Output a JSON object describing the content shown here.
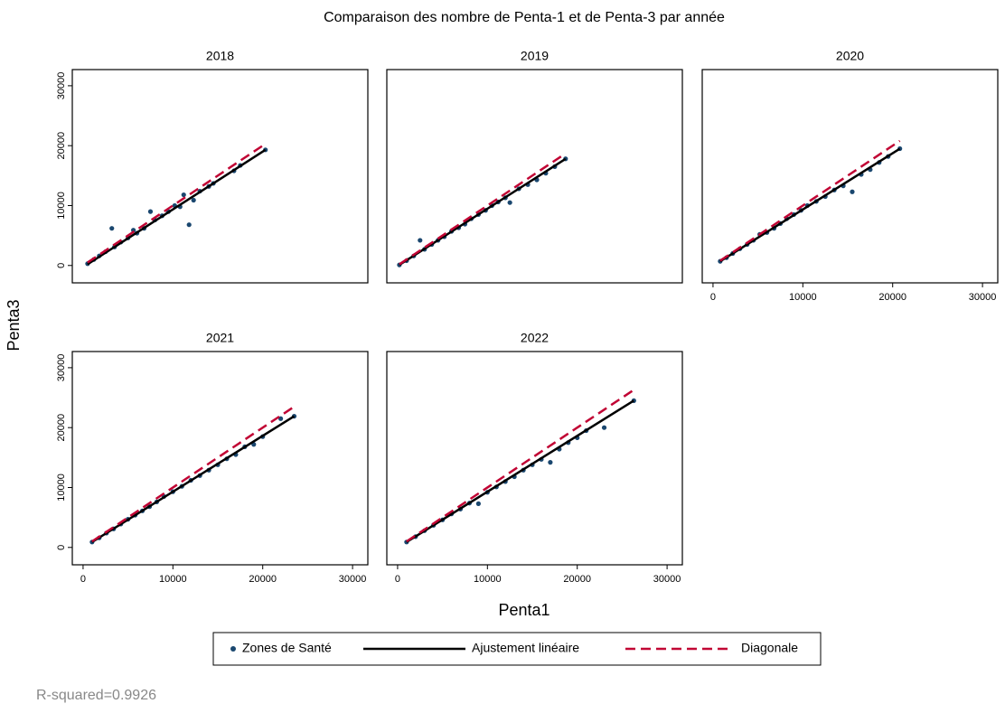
{
  "figure": {
    "title": "Comparaison des nombre de Penta-1 et de Penta-3 par année",
    "x_label": "Penta1",
    "y_label": "Penta3",
    "note": "R-squared=0.9926"
  },
  "chart_data": [
    {
      "type": "scatter",
      "title": "2018",
      "xlim": [
        -1200,
        31700
      ],
      "ylim": [
        -2900,
        32700
      ],
      "xticks": [
        0,
        10000,
        20000,
        30000
      ],
      "yticks": [
        0,
        10000,
        20000,
        30000
      ],
      "series": [
        {
          "name": "Zones de Santé",
          "color": "#1a476f",
          "kind": "points",
          "x": [
            500,
            1200,
            1800,
            2500,
            3200,
            3500,
            4200,
            5000,
            5600,
            6000,
            6800,
            7500,
            8000,
            8800,
            9500,
            10200,
            10800,
            11200,
            11800,
            12300,
            13000,
            14000,
            14500,
            16800,
            17500,
            20300
          ],
          "values": [
            300,
            1000,
            1600,
            2300,
            6200,
            3100,
            3900,
            4600,
            5900,
            5400,
            6200,
            9000,
            7600,
            8300,
            9000,
            10000,
            9800,
            11800,
            6800,
            10900,
            12400,
            13200,
            13700,
            15800,
            16700,
            19300
          ]
        },
        {
          "name": "Ajustement linéaire",
          "color": "#000000",
          "kind": "line",
          "x": [
            500,
            20300
          ],
          "values": [
            200,
            19300
          ]
        },
        {
          "name": "Diagonale",
          "color": "#c10534",
          "kind": "dashed",
          "x": [
            500,
            20300
          ],
          "values": [
            500,
            20300
          ]
        }
      ]
    },
    {
      "type": "scatter",
      "title": "2019",
      "xlim": [
        -1200,
        31700
      ],
      "ylim": [
        -2900,
        32700
      ],
      "xticks": [
        0,
        10000,
        20000,
        30000
      ],
      "yticks": [
        0,
        10000,
        20000,
        30000
      ],
      "series": [
        {
          "name": "Zones de Santé",
          "color": "#1a476f",
          "kind": "points",
          "x": [
            200,
            1000,
            1800,
            2500,
            3000,
            3800,
            4500,
            5200,
            6000,
            6800,
            7500,
            8200,
            9000,
            9800,
            10500,
            11200,
            12000,
            12500,
            13500,
            14500,
            15500,
            16500,
            17500,
            18700
          ],
          "values": [
            100,
            800,
            1600,
            4200,
            2700,
            3500,
            4200,
            4800,
            5700,
            6300,
            6900,
            7800,
            8500,
            9200,
            10000,
            10600,
            11300,
            10500,
            12800,
            13500,
            14300,
            15400,
            16500,
            17800
          ]
        },
        {
          "name": "Ajustement linéaire",
          "color": "#000000",
          "kind": "line",
          "x": [
            200,
            18700
          ],
          "values": [
            100,
            17800
          ]
        },
        {
          "name": "Diagonale",
          "color": "#c10534",
          "kind": "dashed",
          "x": [
            200,
            18700
          ],
          "values": [
            200,
            18700
          ]
        }
      ]
    },
    {
      "type": "scatter",
      "title": "2020",
      "xlim": [
        -1200,
        31700
      ],
      "ylim": [
        -2900,
        32700
      ],
      "xticks": [
        0,
        10000,
        20000,
        30000
      ],
      "yticks": [
        0,
        10000,
        20000,
        30000
      ],
      "series": [
        {
          "name": "Zones de Santé",
          "color": "#1a476f",
          "kind": "points",
          "x": [
            800,
            1500,
            2200,
            3000,
            3800,
            4500,
            5200,
            6000,
            6800,
            7500,
            8200,
            9000,
            9800,
            10500,
            11500,
            12500,
            13500,
            14500,
            15500,
            16500,
            17500,
            18500,
            19500,
            20800
          ],
          "values": [
            700,
            1300,
            2000,
            2800,
            3500,
            4200,
            5200,
            5500,
            6200,
            7000,
            7800,
            8500,
            9200,
            10000,
            10700,
            11500,
            12600,
            13300,
            12300,
            15200,
            16000,
            17200,
            18200,
            19500
          ]
        },
        {
          "name": "Ajustement linéaire",
          "color": "#000000",
          "kind": "line",
          "x": [
            800,
            20800
          ],
          "values": [
            700,
            19500
          ]
        },
        {
          "name": "Diagonale",
          "color": "#c10534",
          "kind": "dashed",
          "x": [
            800,
            20800
          ],
          "values": [
            800,
            20800
          ]
        }
      ]
    },
    {
      "type": "scatter",
      "title": "2021",
      "xlim": [
        -1200,
        31700
      ],
      "ylim": [
        -2900,
        32700
      ],
      "xticks": [
        0,
        10000,
        20000,
        30000
      ],
      "yticks": [
        0,
        10000,
        20000,
        30000
      ],
      "series": [
        {
          "name": "Zones de Santé",
          "color": "#1a476f",
          "kind": "points",
          "x": [
            1000,
            1800,
            2600,
            3400,
            4200,
            5000,
            5800,
            6600,
            7400,
            8200,
            9000,
            10000,
            11000,
            12000,
            13000,
            14000,
            15000,
            16000,
            17000,
            18000,
            19000,
            20000,
            22000,
            23500
          ],
          "values": [
            900,
            1600,
            2400,
            3100,
            3900,
            4700,
            5400,
            6100,
            6800,
            7600,
            8500,
            9300,
            10200,
            11200,
            12000,
            12900,
            13800,
            14800,
            15500,
            16800,
            17200,
            18500,
            21500,
            21900
          ]
        },
        {
          "name": "Ajustement linéaire",
          "color": "#000000",
          "kind": "line",
          "x": [
            1000,
            23500
          ],
          "values": [
            900,
            21900
          ]
        },
        {
          "name": "Diagonale",
          "color": "#c10534",
          "kind": "dashed",
          "x": [
            1000,
            23500
          ],
          "values": [
            1000,
            23500
          ]
        }
      ]
    },
    {
      "type": "scatter",
      "title": "2022",
      "xlim": [
        -1200,
        31700
      ],
      "ylim": [
        -2900,
        32700
      ],
      "xticks": [
        0,
        10000,
        20000,
        30000
      ],
      "yticks": [
        0,
        10000,
        20000,
        30000
      ],
      "series": [
        {
          "name": "Zones de Santé",
          "color": "#1a476f",
          "kind": "points",
          "x": [
            1000,
            2000,
            3000,
            4000,
            5000,
            6000,
            7000,
            8000,
            9000,
            10000,
            11000,
            12000,
            13000,
            14000,
            15000,
            16000,
            17000,
            18000,
            19000,
            20000,
            21000,
            23000,
            26300
          ],
          "values": [
            900,
            1800,
            2800,
            3700,
            4600,
            5600,
            6400,
            7400,
            7300,
            9200,
            10100,
            11000,
            11800,
            12900,
            13800,
            14700,
            14200,
            16400,
            17500,
            18300,
            19500,
            20000,
            24500
          ]
        },
        {
          "name": "Ajustement linéaire",
          "color": "#000000",
          "kind": "line",
          "x": [
            1000,
            26300
          ],
          "values": [
            900,
            24500
          ]
        },
        {
          "name": "Diagonale",
          "color": "#c10534",
          "kind": "dashed",
          "x": [
            1000,
            26300
          ],
          "values": [
            1000,
            26300
          ]
        }
      ]
    }
  ]
}
